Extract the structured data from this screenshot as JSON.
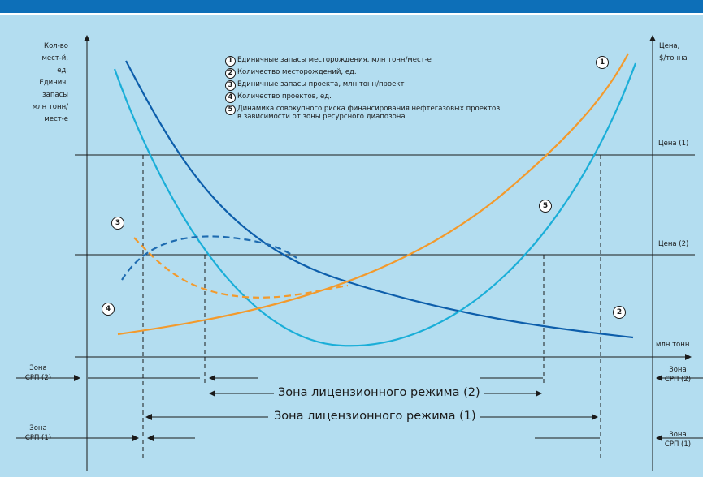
{
  "left_axis_label": [
    "Кол-во",
    "мест-й,",
    "ед.",
    "Единич.",
    "запасы",
    "млн тонн/",
    "мест-е"
  ],
  "right_axis_label": [
    "Цена,",
    "$/тонна"
  ],
  "x_axis_label": "млн тонн",
  "price_lines": {
    "price1": "Цена (1)",
    "price2": "Цена (2)"
  },
  "legend": [
    {
      "num": "1",
      "text": "Единичные запасы месторождения, млн тонн/мест-е"
    },
    {
      "num": "2",
      "text": "Количество месторождений, ед."
    },
    {
      "num": "3",
      "text": "Единичные запасы проекта, млн тонн/проект"
    },
    {
      "num": "4",
      "text": "Количество проектов, ед."
    },
    {
      "num": "5",
      "text": "Динамика совокупного риска финансирования нефтегазовых проектов",
      "text2": "в зависимости от зоны ресурсного диапозона"
    }
  ],
  "curve_markers": [
    "1",
    "2",
    "3",
    "4",
    "5"
  ],
  "zones": {
    "srp2_left": [
      "Зона",
      "СРП (2)"
    ],
    "srp1_left": [
      "Зона",
      "СРП (1)"
    ],
    "srp2_right": [
      "Зона",
      "СРП (2)"
    ],
    "srp1_right": [
      "Зона",
      "СРП (1)"
    ],
    "license2": "Зона лицензионного режима (2)",
    "license1": "Зона лицензионного режима (1)"
  },
  "colors": {
    "background": "#b3ddf0",
    "header_band": "#0d6fb8",
    "curve_field_reserves": "#0d5eab",
    "curve_field_count": "#1aaed8",
    "curve_project_reserves": "#f39a2c",
    "curve_project_count_dashed": "#1e6bb0",
    "axis": "#1a1a1a"
  }
}
